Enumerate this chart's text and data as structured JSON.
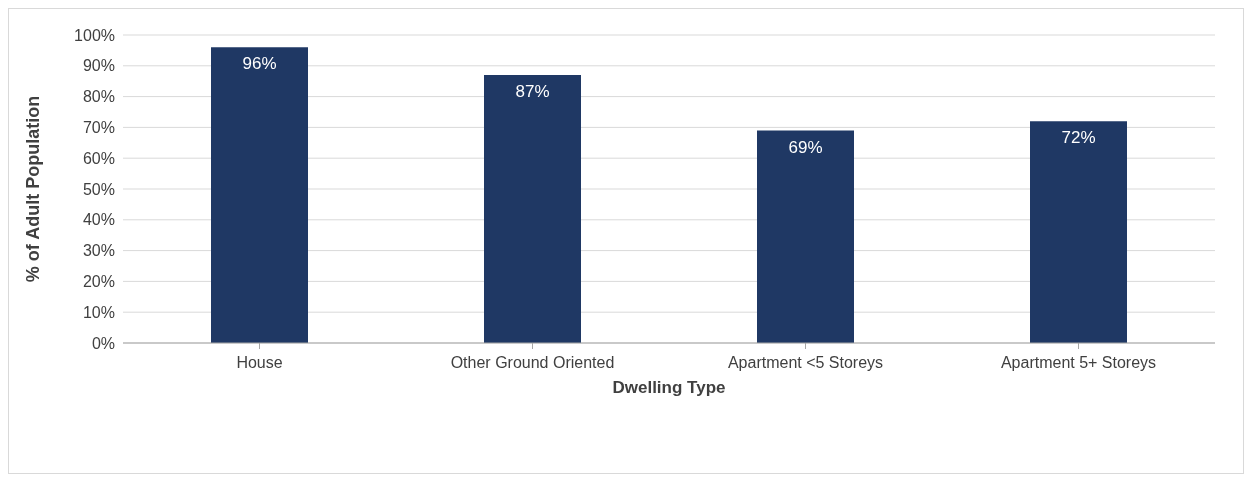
{
  "chart_data": {
    "type": "bar",
    "xlabel": "Dwelling Type",
    "ylabel": "% of Adult Population",
    "categories": [
      "House",
      "Other Ground Oriented",
      "Apartment <5 Storeys",
      "Apartment 5+ Storeys"
    ],
    "values": [
      96,
      87,
      69,
      72
    ],
    "value_labels": [
      "96%",
      "87%",
      "69%",
      "72%"
    ],
    "color": "#1f3864",
    "ylim": [
      0,
      100
    ],
    "yticks": [
      {
        "value": 0,
        "label": "0%"
      },
      {
        "value": 10,
        "label": "10%"
      },
      {
        "value": 20,
        "label": "20%"
      },
      {
        "value": 30,
        "label": "30%"
      },
      {
        "value": 40,
        "label": "40%"
      },
      {
        "value": 50,
        "label": "50%"
      },
      {
        "value": 60,
        "label": "60%"
      },
      {
        "value": 70,
        "label": "70%"
      },
      {
        "value": 80,
        "label": "80%"
      },
      {
        "value": 90,
        "label": "90%"
      },
      {
        "value": 100,
        "label": "100%"
      }
    ],
    "grid": "y"
  }
}
